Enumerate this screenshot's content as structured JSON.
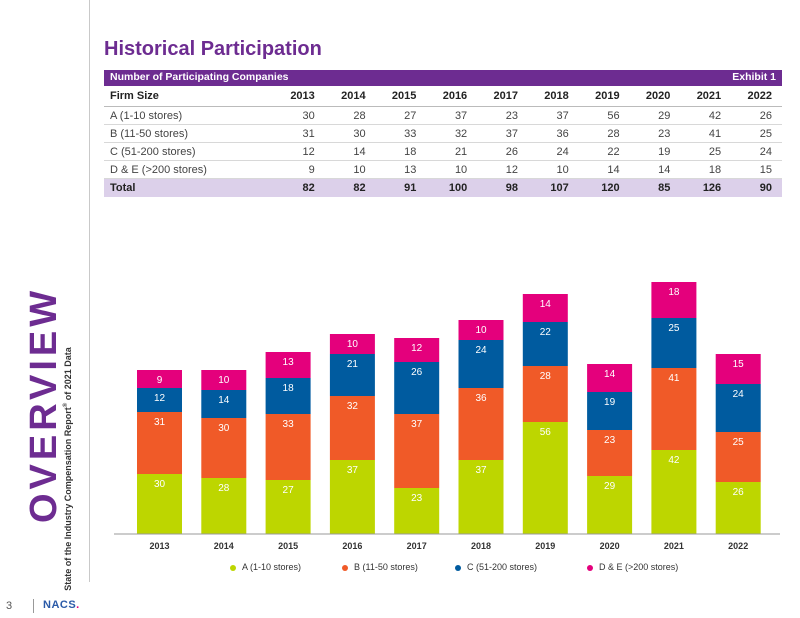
{
  "sidebar": {
    "word": "OVERVIEW",
    "subtitle_pre": "State of the Industry Compensation Report",
    "subtitle_sup": "®",
    "subtitle_post": " of 2021 Data"
  },
  "footer": {
    "page": "3",
    "logo": "NACS",
    "logo_dot": "."
  },
  "title": "Historical Participation",
  "table": {
    "header_left": "Number of Participating Companies",
    "header_right": "Exhibit 1",
    "col_header": "Firm Size",
    "years": [
      "2013",
      "2014",
      "2015",
      "2016",
      "2017",
      "2018",
      "2019",
      "2020",
      "2021",
      "2022"
    ],
    "rows": [
      {
        "label": "A (1-10 stores)",
        "values": [
          "30",
          "28",
          "27",
          "37",
          "23",
          "37",
          "56",
          "29",
          "42",
          "26"
        ]
      },
      {
        "label": "B (11-50 stores)",
        "values": [
          "31",
          "30",
          "33",
          "32",
          "37",
          "36",
          "28",
          "23",
          "41",
          "25"
        ]
      },
      {
        "label": "C (51-200 stores)",
        "values": [
          "12",
          "14",
          "18",
          "21",
          "26",
          "24",
          "22",
          "19",
          "25",
          "24"
        ]
      },
      {
        "label": "D & E (>200 stores)",
        "values": [
          "9",
          "10",
          "13",
          "10",
          "12",
          "10",
          "14",
          "14",
          "18",
          "15"
        ]
      }
    ],
    "total": {
      "label": "Total",
      "values": [
        "82",
        "82",
        "91",
        "100",
        "98",
        "107",
        "120",
        "85",
        "126",
        "90"
      ]
    }
  },
  "chart_data": {
    "type": "bar",
    "stacked": true,
    "categories": [
      "2013",
      "2014",
      "2015",
      "2016",
      "2017",
      "2018",
      "2019",
      "2020",
      "2021",
      "2022"
    ],
    "series": [
      {
        "name": "A (1-10 stores)",
        "color": "#bdd600",
        "values": [
          30,
          28,
          27,
          37,
          23,
          37,
          56,
          29,
          42,
          26
        ]
      },
      {
        "name": "B (11-50 stores)",
        "color": "#f05a28",
        "values": [
          31,
          30,
          33,
          32,
          37,
          36,
          28,
          23,
          41,
          25
        ]
      },
      {
        "name": "C (51-200 stores)",
        "color": "#005b9f",
        "values": [
          12,
          14,
          18,
          21,
          26,
          24,
          22,
          19,
          25,
          24
        ]
      },
      {
        "name": "D & E (>200 stores)",
        "color": "#e4007c",
        "values": [
          9,
          10,
          13,
          10,
          12,
          10,
          14,
          14,
          18,
          15
        ]
      }
    ],
    "ylim": [
      0,
      130
    ],
    "grid": false,
    "legend_position": "bottom"
  }
}
